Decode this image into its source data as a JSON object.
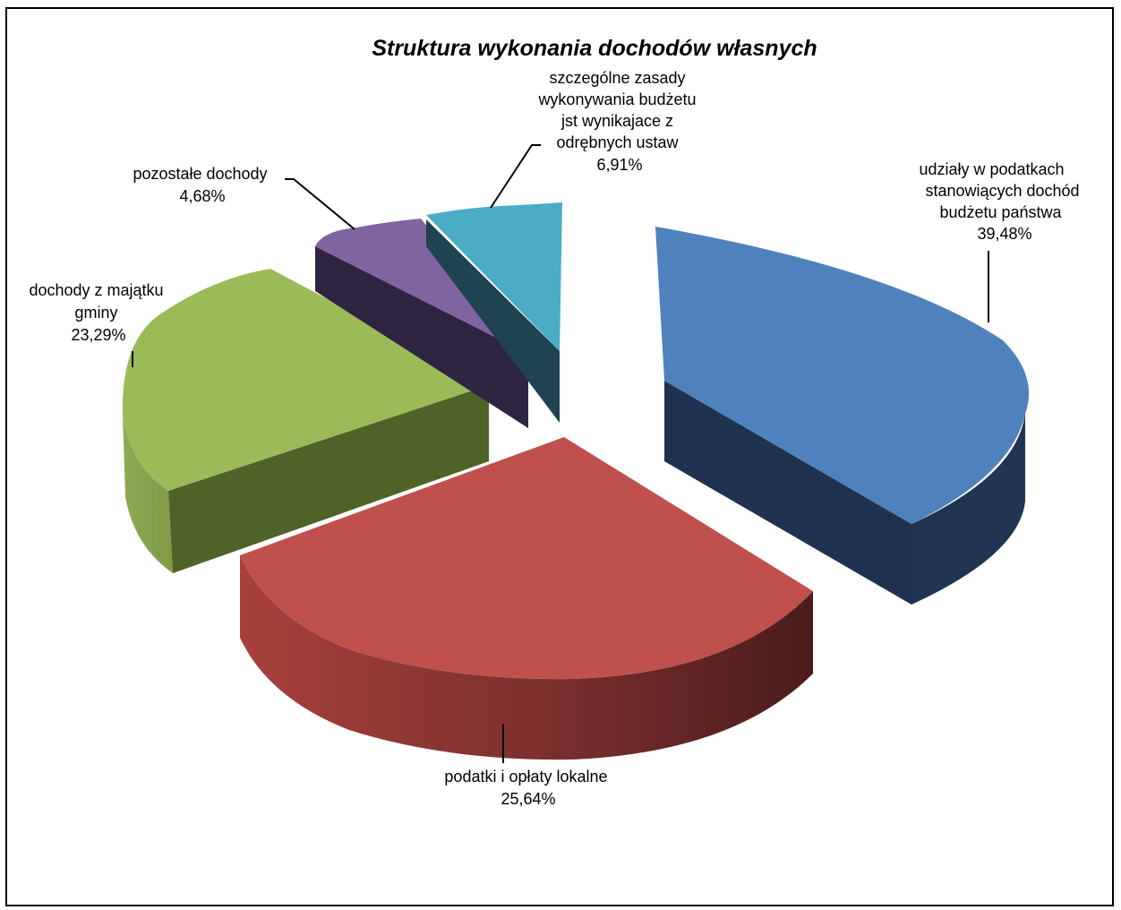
{
  "chart_data": {
    "type": "pie",
    "style": "3d-exploded",
    "title": "Struktura wykonania dochodów własnych",
    "legend": "none",
    "slices": [
      {
        "label_lines": [
          "udziały w podatkach",
          "stanowiących dochód",
          "budżetu państwa"
        ],
        "percent_label": "39,48%",
        "value": 39.48,
        "color": "#4F81BD"
      },
      {
        "label_lines": [
          "podatki i opłaty lokalne"
        ],
        "percent_label": "25,64%",
        "value": 25.64,
        "color": "#C0504D"
      },
      {
        "label_lines": [
          "dochody z majątku",
          "gminy"
        ],
        "percent_label": "23,29%",
        "value": 23.29,
        "color": "#9BBB59"
      },
      {
        "label_lines": [
          "pozostałe  dochody"
        ],
        "percent_label": "4,68%",
        "value": 4.68,
        "color": "#8064A2"
      },
      {
        "label_lines": [
          "szczególne  zasady",
          "wykonywania  budżetu",
          "jst wynikajace z",
          "odrębnych ustaw"
        ],
        "percent_label": "6,91%",
        "value": 6.91,
        "color": "#4BACC6"
      }
    ]
  }
}
